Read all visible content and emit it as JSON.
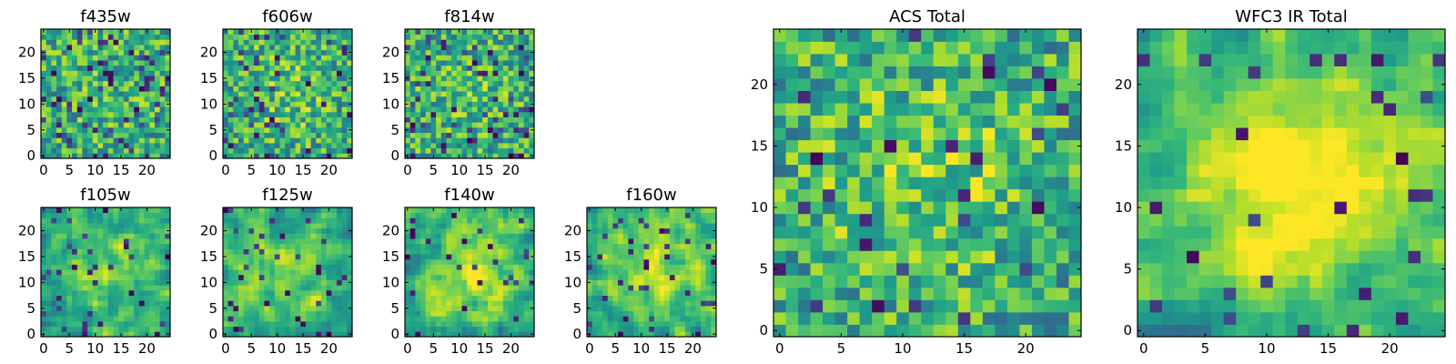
{
  "chart_data": [
    {
      "type": "heatmap",
      "title": "f435w",
      "grid_size": 25,
      "xlim": [
        0,
        24
      ],
      "ylim": [
        0,
        24
      ],
      "xticks": [
        "0",
        "5",
        "10",
        "15",
        "20"
      ],
      "yticks": [
        "0",
        "5",
        "10",
        "15",
        "20"
      ],
      "colormap": "viridis",
      "seed": 11,
      "smooth": 0,
      "center_boost": 0.05,
      "dark_fraction": 0.1
    },
    {
      "type": "heatmap",
      "title": "f606w",
      "grid_size": 25,
      "xlim": [
        0,
        24
      ],
      "ylim": [
        0,
        24
      ],
      "xticks": [
        "0",
        "5",
        "10",
        "15",
        "20"
      ],
      "yticks": [
        "0",
        "5",
        "10",
        "15",
        "20"
      ],
      "colormap": "viridis",
      "seed": 23,
      "smooth": 0,
      "center_boost": 0.12,
      "dark_fraction": 0.07
    },
    {
      "type": "heatmap",
      "title": "f814w",
      "grid_size": 25,
      "xlim": [
        0,
        24
      ],
      "ylim": [
        0,
        24
      ],
      "xticks": [
        "0",
        "5",
        "10",
        "15",
        "20"
      ],
      "yticks": [
        "0",
        "5",
        "10",
        "15",
        "20"
      ],
      "colormap": "viridis",
      "seed": 37,
      "smooth": 0,
      "center_boost": 0.08,
      "dark_fraction": 0.08
    },
    {
      "type": "heatmap",
      "title": "f105w",
      "grid_size": 25,
      "xlim": [
        0,
        24
      ],
      "ylim": [
        0,
        24
      ],
      "xticks": [
        "0",
        "5",
        "10",
        "15",
        "20"
      ],
      "yticks": [
        "0",
        "5",
        "10",
        "15",
        "20"
      ],
      "colormap": "viridis",
      "seed": 41,
      "smooth": 1,
      "center_boost": 0.25,
      "dark_fraction": 0.05
    },
    {
      "type": "heatmap",
      "title": "f125w",
      "grid_size": 25,
      "xlim": [
        0,
        24
      ],
      "ylim": [
        0,
        24
      ],
      "xticks": [
        "0",
        "5",
        "10",
        "15",
        "20"
      ],
      "yticks": [
        "0",
        "5",
        "10",
        "15",
        "20"
      ],
      "colormap": "viridis",
      "seed": 53,
      "smooth": 1,
      "center_boost": 0.15,
      "dark_fraction": 0.06
    },
    {
      "type": "heatmap",
      "title": "f140w",
      "grid_size": 25,
      "xlim": [
        0,
        24
      ],
      "ylim": [
        0,
        24
      ],
      "xticks": [
        "0",
        "5",
        "10",
        "15",
        "20"
      ],
      "yticks": [
        "0",
        "5",
        "10",
        "15",
        "20"
      ],
      "colormap": "viridis",
      "seed": 67,
      "smooth": 1,
      "center_boost": 0.3,
      "dark_fraction": 0.04
    },
    {
      "type": "heatmap",
      "title": "f160w",
      "grid_size": 25,
      "xlim": [
        0,
        24
      ],
      "ylim": [
        0,
        24
      ],
      "xticks": [
        "0",
        "5",
        "10",
        "15",
        "20"
      ],
      "yticks": [
        "0",
        "5",
        "10",
        "15",
        "20"
      ],
      "colormap": "viridis",
      "seed": 79,
      "smooth": 1,
      "center_boost": 0.3,
      "dark_fraction": 0.05
    },
    {
      "type": "heatmap",
      "title": "ACS Total",
      "grid_size": 25,
      "xlim": [
        0,
        24
      ],
      "ylim": [
        0,
        24
      ],
      "xticks": [
        "0",
        "5",
        "10",
        "15",
        "20"
      ],
      "yticks": [
        "0",
        "5",
        "10",
        "15",
        "20"
      ],
      "colormap": "viridis",
      "seed": 83,
      "smooth": 0,
      "center_boost": 0.18,
      "dark_fraction": 0.05
    },
    {
      "type": "heatmap",
      "title": "WFC3 IR Total",
      "grid_size": 25,
      "xlim": [
        0,
        24
      ],
      "ylim": [
        0,
        24
      ],
      "xticks": [
        "0",
        "5",
        "10",
        "15",
        "20"
      ],
      "yticks": [
        "0",
        "5",
        "10",
        "15",
        "20"
      ],
      "colormap": "viridis",
      "seed": 97,
      "smooth": 1,
      "center_boost": 0.4,
      "dark_fraction": 0.03
    }
  ]
}
